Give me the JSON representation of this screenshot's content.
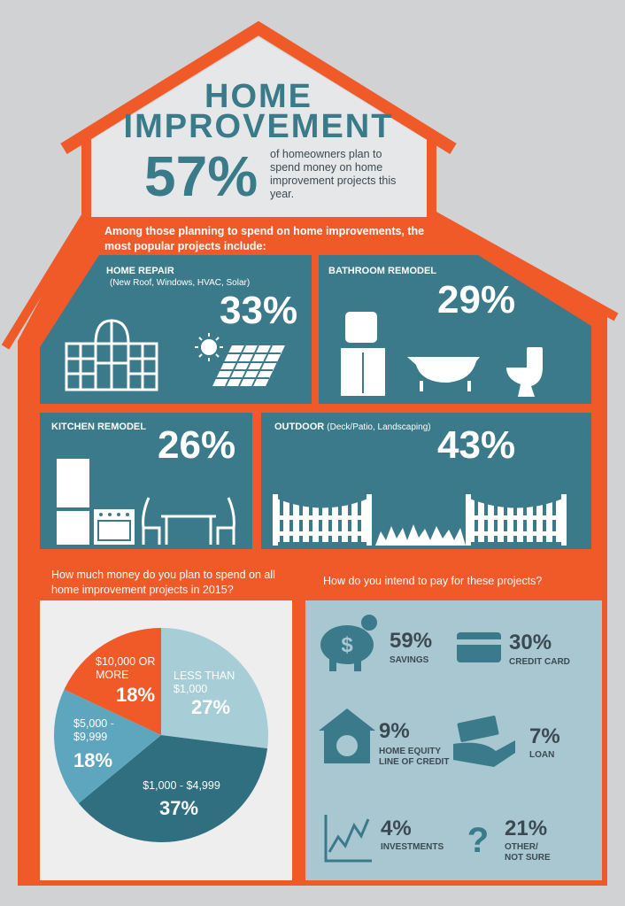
{
  "header": {
    "title": [
      "HOME",
      "IMPROVEMENT"
    ],
    "stat": "57%",
    "stat_text": "of homeowners plan to spend money on home improvement projects this year."
  },
  "projects": {
    "intro": "Among those planning to spend on home improvements, the most popular projects include:",
    "items": [
      {
        "name": "HOME REPAIR",
        "note": "(New Roof, Windows, HVAC, Solar)",
        "value": "33%"
      },
      {
        "name": "BATHROOM REMODEL",
        "value": "29%"
      },
      {
        "name": "KITCHEN REMODEL",
        "value": "26%"
      },
      {
        "name": "OUTDOOR",
        "note": "(Deck/Patio, Landscaping)",
        "value": "43%"
      }
    ]
  },
  "chart_data": {
    "type": "pie",
    "title": "How much money do you plan to spend on all home improvement projects in 2015?",
    "categories": [
      "LESS THAN $1,000",
      "$1,000 - $4,999",
      "$5,000 - $9,999",
      "$10,000 OR MORE"
    ],
    "values": [
      27,
      37,
      18,
      18
    ],
    "value_labels": [
      "27%",
      "37%",
      "18%",
      "18%"
    ],
    "colors": [
      "#a7cdd7",
      "#2f6f7f",
      "#5ea6bd",
      "#f05a28"
    ]
  },
  "payment": {
    "question": "How do you intend to pay for these projects?",
    "items": [
      {
        "value": "59%",
        "label": "SAVINGS"
      },
      {
        "value": "30%",
        "label": "CREDIT CARD"
      },
      {
        "value": "9%",
        "label": "HOME EQUITY LINE OF CREDIT"
      },
      {
        "value": "7%",
        "label": "LOAN"
      },
      {
        "value": "4%",
        "label": "INVESTMENTS"
      },
      {
        "value": "21%",
        "label": "OTHER/ NOT SURE"
      }
    ]
  }
}
